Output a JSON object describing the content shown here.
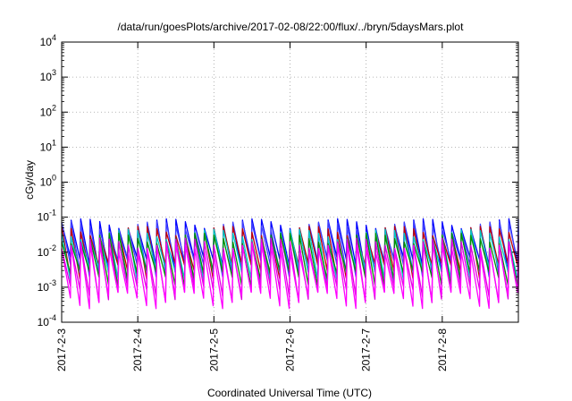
{
  "chart_data": {
    "type": "line",
    "title": "/data/run/goesPlots/archive/2017-02-08/22:00/flux/../bryn/5daysMars.plot",
    "xlabel": "Coordinated Universal Time (UTC)",
    "ylabel": "cGy/day",
    "yscale": "log",
    "ylim": [
      0.0001,
      10000
    ],
    "y_ticks": [
      {
        "value": 0.0001,
        "base": "10",
        "exp": "-4"
      },
      {
        "value": 0.001,
        "base": "10",
        "exp": "-3"
      },
      {
        "value": 0.01,
        "base": "10",
        "exp": "-2"
      },
      {
        "value": 0.1,
        "base": "10",
        "exp": "-1"
      },
      {
        "value": 1,
        "base": "10",
        "exp": "0"
      },
      {
        "value": 10,
        "base": "10",
        "exp": "1"
      },
      {
        "value": 100,
        "base": "10",
        "exp": "2"
      },
      {
        "value": 1000,
        "base": "10",
        "exp": "3"
      },
      {
        "value": 10000,
        "base": "10",
        "exp": "4"
      }
    ],
    "xlim": [
      "2017-02-03",
      "2017-02-09"
    ],
    "x_ticks": [
      "2017-2-3",
      "2017-2-4",
      "2017-2-5",
      "2017-2-6",
      "2017-2-7",
      "2017-2-8"
    ],
    "grid": true,
    "sawtooth_period_hours": 3,
    "series": [
      {
        "color": "#0000ff",
        "peak": 0.09,
        "trough": 0.006
      },
      {
        "color": "#4040ff",
        "peak": 0.075,
        "trough": 0.005
      },
      {
        "color": "#c00000",
        "peak": 0.055,
        "trough": 0.004
      },
      {
        "color": "#00c8c8",
        "peak": 0.045,
        "trough": 0.003
      },
      {
        "color": "#009000",
        "peak": 0.035,
        "trough": 0.0025
      },
      {
        "color": "#e000e0",
        "peak": 0.025,
        "trough": 0.0009
      },
      {
        "color": "#ff00ff",
        "peak": 0.018,
        "trough": 0.0006
      }
    ]
  }
}
